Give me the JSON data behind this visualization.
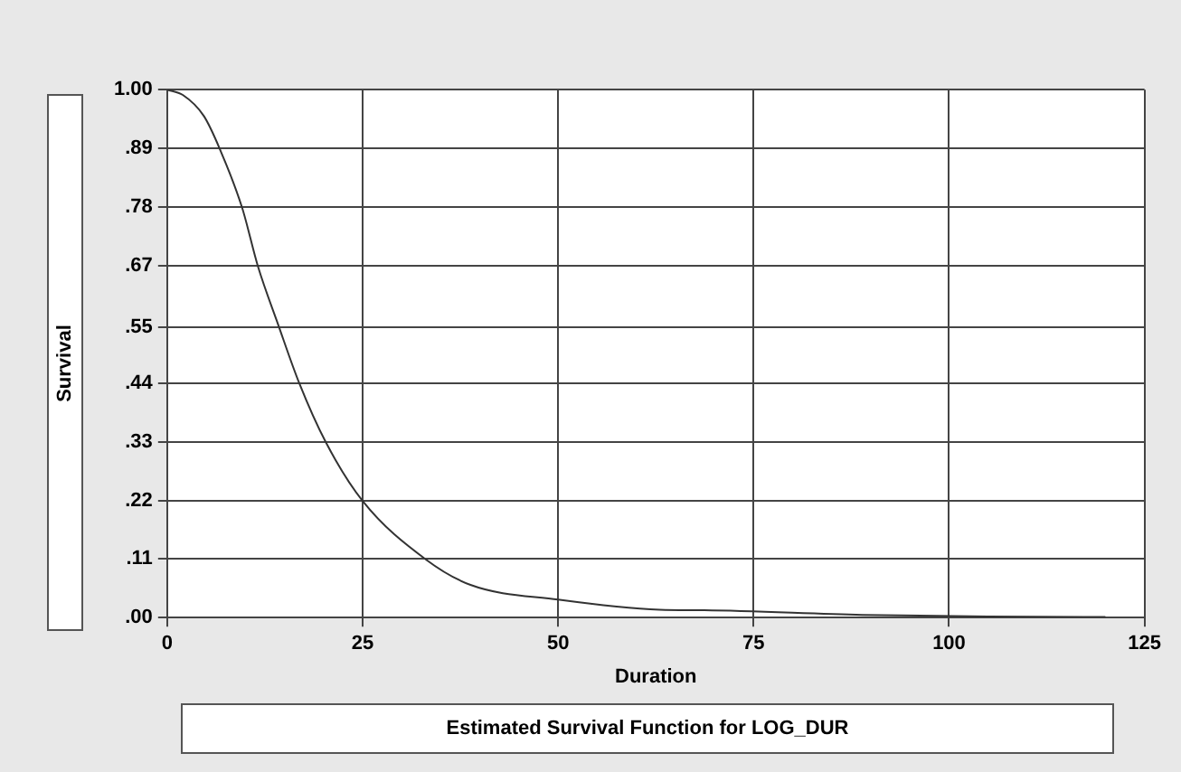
{
  "chart_data": {
    "type": "line",
    "title": "Estimated Survival Function for LOG_DUR",
    "xlabel": "Duration",
    "ylabel": "Survival",
    "series": [
      {
        "color": "#333333",
        "x": [
          0,
          2,
          4.7,
          6.7,
          9.6,
          11.6,
          14.2,
          16.9,
          20.3,
          25,
          33.1,
          38.8,
          50,
          63,
          68.7,
          88.9,
          105,
          120
        ],
        "values": [
          1,
          0.99,
          0.95,
          0.889,
          0.776,
          0.666,
          0.555,
          0.444,
          0.332,
          0.221,
          0.11,
          0.062,
          0.034,
          0.015,
          0.014,
          0.005,
          0.002,
          0.001
        ]
      }
    ],
    "xlim": [
      0,
      125
    ],
    "xticks": [
      0,
      25,
      50,
      75,
      100,
      125
    ],
    "ylim": [
      0,
      1
    ],
    "yticks": [
      {
        "value": 0,
        "label": ".00"
      },
      {
        "value": 0.111,
        "label": ".11"
      },
      {
        "value": 0.222,
        "label": ".22"
      },
      {
        "value": 0.333,
        "label": ".33"
      },
      {
        "value": 0.444,
        "label": ".44"
      },
      {
        "value": 0.55,
        "label": ".55"
      },
      {
        "value": 0.667,
        "label": ".67"
      },
      {
        "value": 0.778,
        "label": ".78"
      },
      {
        "value": 0.889,
        "label": ".89"
      },
      {
        "value": 1,
        "label": "1.00"
      }
    ],
    "grid": true,
    "legend": false,
    "marker": "none",
    "line_style": "solid"
  }
}
